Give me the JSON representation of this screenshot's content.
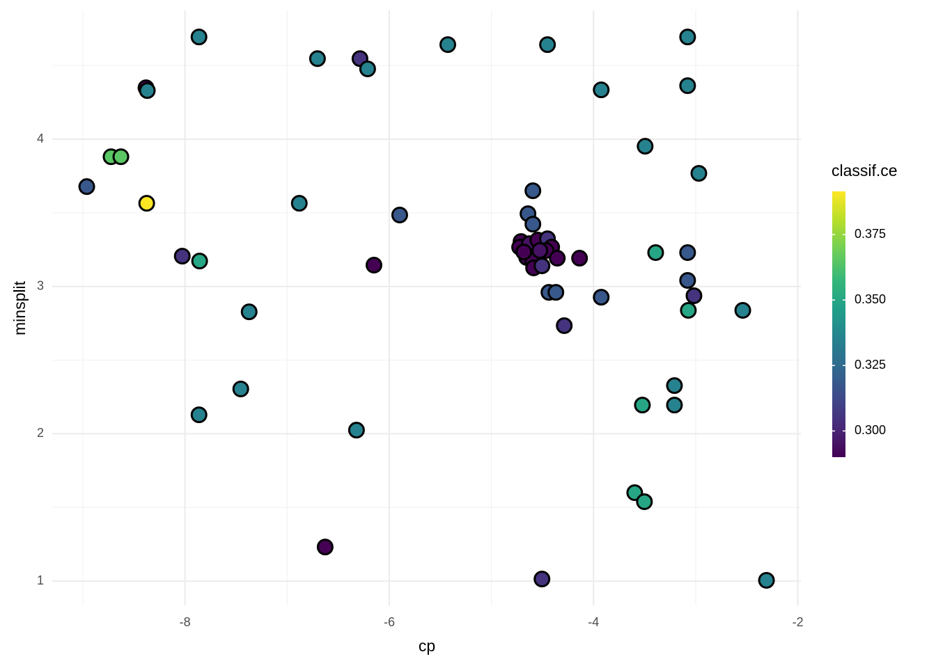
{
  "chart_data": {
    "type": "scatter",
    "x_label": "cp",
    "y_label": "minsplit",
    "legend_title": "classif.ce",
    "colormap": "viridis",
    "grid": true,
    "point_border": "#000000",
    "xlim": [
      -9.3,
      -1.97
    ],
    "ylim": [
      0.835,
      4.874
    ],
    "xticks": [
      -8,
      -6,
      -4,
      -2
    ],
    "yticks": [
      1,
      2,
      3,
      4
    ],
    "xminorticks": [
      -9,
      -7,
      -5,
      -3
    ],
    "yminorticks": [
      1.5,
      2.5,
      3.5,
      4.5
    ],
    "clim": [
      0.29,
      0.3915
    ],
    "cticks": [
      {
        "value": 0.3,
        "label": "0.300"
      },
      {
        "value": 0.325,
        "label": "0.325"
      },
      {
        "value": 0.35,
        "label": "0.350"
      },
      {
        "value": 0.375,
        "label": "0.375"
      }
    ],
    "series": [
      {
        "x": [
          -7.863,
          -6.703,
          -6.287,
          -6.212,
          -5.427,
          -4.451,
          -3.079,
          -8.382,
          -8.369,
          -3.925,
          -3.079,
          -8.724,
          -8.628,
          -3.495,
          -2.969,
          -8.962,
          -8.375,
          -6.881,
          -5.898,
          -4.594,
          -4.642,
          -4.594,
          -8.027,
          -7.857,
          -6.15,
          -3.392,
          -3.079,
          -4.137,
          -3.079,
          -3.017,
          -3.072,
          -2.539,
          -7.372,
          -3.925,
          -4.437,
          -4.369,
          -4.287,
          -7.454,
          -7.863,
          -3.208,
          -3.522,
          -3.208,
          -6.321,
          -3.597,
          -3.502,
          -6.628,
          -4.505,
          -2.307,
          -4.71,
          -4.724,
          -4.628,
          -4.546,
          -4.451,
          -4.41,
          -4.464,
          -4.655,
          -4.594,
          -4.587,
          -4.526,
          -4.355,
          -4.505,
          -4.683
        ],
        "values": [
          4.694,
          4.547,
          4.547,
          4.477,
          4.642,
          4.642,
          4.694,
          4.349,
          4.33,
          4.335,
          4.363,
          3.881,
          3.881,
          3.952,
          3.768,
          3.678,
          3.565,
          3.565,
          3.485,
          3.65,
          3.494,
          3.423,
          3.206,
          3.173,
          3.145,
          3.23,
          3.23,
          3.192,
          3.041,
          2.937,
          2.838,
          2.838,
          2.828,
          2.927,
          2.96,
          2.96,
          2.734,
          2.304,
          2.129,
          2.327,
          2.195,
          2.195,
          2.025,
          1.6,
          1.539,
          1.231,
          1.014,
          1.005,
          3.305,
          3.267,
          3.291,
          3.315,
          3.324,
          3.267,
          3.244,
          3.197,
          3.173,
          3.126,
          3.244,
          3.192,
          3.14,
          3.234
        ],
        "color_values": [
          0.335,
          0.335,
          0.305,
          0.335,
          0.335,
          0.335,
          0.335,
          0.29,
          0.335,
          0.335,
          0.335,
          0.365,
          0.365,
          0.335,
          0.335,
          0.318,
          0.3915,
          0.335,
          0.318,
          0.318,
          0.318,
          0.318,
          0.305,
          0.35,
          0.29,
          0.35,
          0.318,
          0.29,
          0.318,
          0.305,
          0.35,
          0.335,
          0.335,
          0.318,
          0.318,
          0.318,
          0.305,
          0.335,
          0.335,
          0.335,
          0.35,
          0.335,
          0.335,
          0.35,
          0.35,
          0.29,
          0.305,
          0.335,
          0.29,
          0.29,
          0.295,
          0.29,
          0.305,
          0.29,
          0.29,
          0.29,
          0.29,
          0.29,
          0.295,
          0.29,
          0.305,
          0.29
        ]
      }
    ]
  }
}
